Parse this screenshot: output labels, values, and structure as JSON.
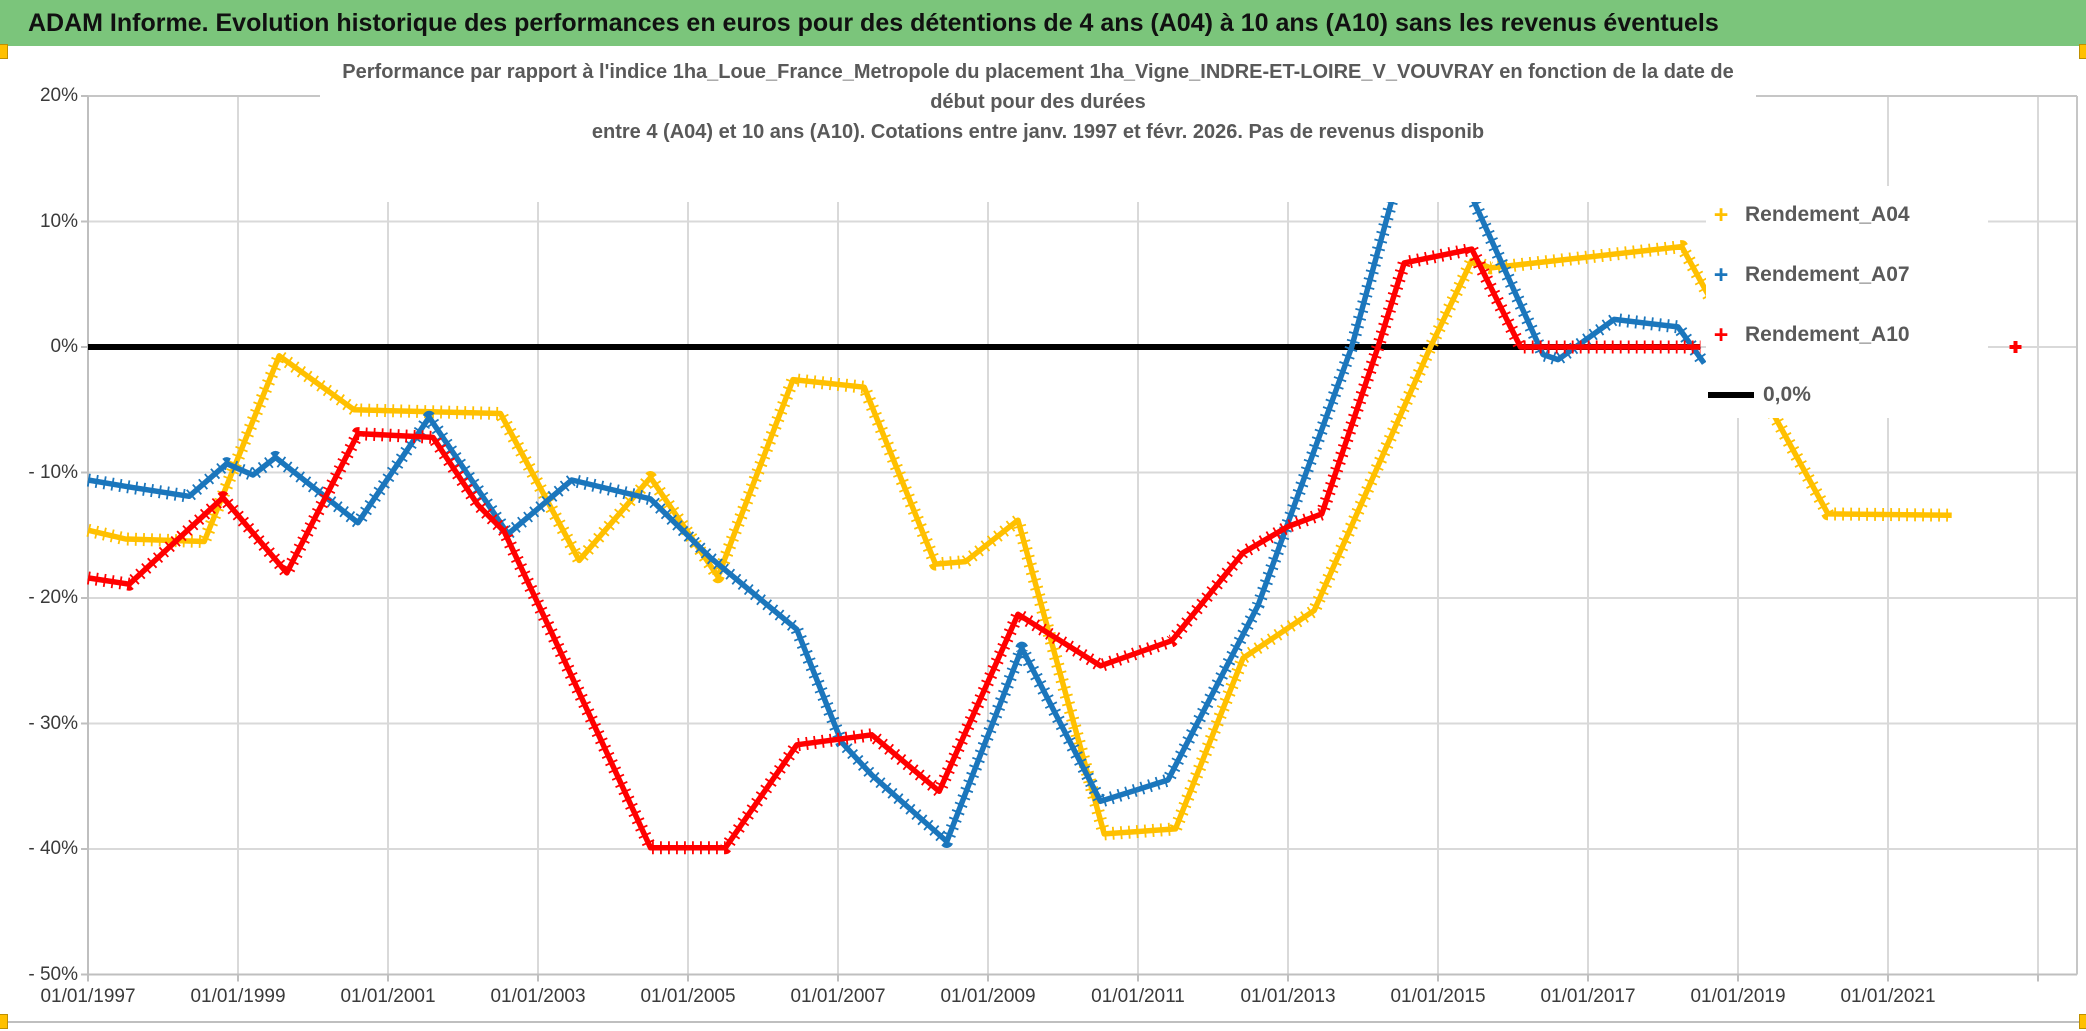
{
  "header": {
    "title": "ADAM Informe. Evolution historique des performances en euros pour des détentions de 4 ans (A04) à 10 ans (A10) sans les revenus éventuels"
  },
  "chart_data": {
    "type": "line",
    "title_lines": [
      "Performance par rapport à l'indice 1ha_Loue_France_Metropole  du placement 1ha_Vigne_INDRE-ET-LOIRE_V_VOUVRAY en fonction de la date de",
      "début pour des durées",
      "entre 4 (A04) et 10 ans (A10). Cotations entre janv. 1997 et févr. 2026. Pas de revenus disponib"
    ],
    "grid": true,
    "legend_position": "right-top",
    "ylim": [
      -50,
      20
    ],
    "xlim_years": [
      1997,
      2023.5
    ],
    "y_axis": {
      "ticks": [
        {
          "label": "20%",
          "value": 20
        },
        {
          "label": "10%",
          "value": 10
        },
        {
          "label": "0%",
          "value": 0
        },
        {
          "label": "- 10%",
          "value": -10
        },
        {
          "label": "- 20%",
          "value": -20
        },
        {
          "label": "- 30%",
          "value": -30
        },
        {
          "label": "- 40%",
          "value": -40
        },
        {
          "label": "- 50%",
          "value": -50
        }
      ]
    },
    "x_axis": {
      "ticks": [
        {
          "label": "01/01/1997",
          "year": 1997
        },
        {
          "label": "01/01/1999",
          "year": 1999
        },
        {
          "label": "01/01/2001",
          "year": 2001
        },
        {
          "label": "01/01/2003",
          "year": 2003
        },
        {
          "label": "01/01/2005",
          "year": 2005
        },
        {
          "label": "01/01/2007",
          "year": 2007
        },
        {
          "label": "01/01/2009",
          "year": 2009
        },
        {
          "label": "01/01/2011",
          "year": 2011
        },
        {
          "label": "01/01/2013",
          "year": 2013
        },
        {
          "label": "01/01/2015",
          "year": 2015
        },
        {
          "label": "01/01/2017",
          "year": 2017
        },
        {
          "label": "01/01/2019",
          "year": 2019
        },
        {
          "label": "01/01/2021",
          "year": 2021
        }
      ],
      "gridline_years": [
        1999,
        2001,
        2003,
        2005,
        2007,
        2009,
        2011,
        2013,
        2015,
        2017,
        2019,
        2021,
        2023
      ]
    },
    "zero_line": {
      "label": "0,0%",
      "value": 0,
      "color": "#000000",
      "start_year": 1997,
      "end_year": 2018.5
    },
    "series": [
      {
        "name": "Rendement_A04",
        "color": "#FFC000",
        "points": [
          [
            1997.0,
            -14.6
          ],
          [
            1997.5,
            -15.3
          ],
          [
            1998.55,
            -15.5
          ],
          [
            1999.55,
            -0.7
          ],
          [
            2000.55,
            -5.0
          ],
          [
            2002.5,
            -5.3
          ],
          [
            2003.55,
            -17.0
          ],
          [
            2004.5,
            -10.4
          ],
          [
            2005.4,
            -18.3
          ],
          [
            2006.4,
            -2.6
          ],
          [
            2007.35,
            -3.2
          ],
          [
            2008.3,
            -17.3
          ],
          [
            2008.7,
            -17.1
          ],
          [
            2009.4,
            -13.8
          ],
          [
            2010.55,
            -38.8
          ],
          [
            2011.5,
            -38.4
          ],
          [
            2012.4,
            -24.8
          ],
          [
            2013.35,
            -21.0
          ],
          [
            2014.9,
            0.0
          ],
          [
            2015.45,
            6.9
          ],
          [
            2015.7,
            6.3
          ],
          [
            2016.6,
            6.9
          ],
          [
            2018.25,
            8.0
          ],
          [
            2020.2,
            -13.3
          ],
          [
            2021.85,
            -13.4
          ]
        ]
      },
      {
        "name": "Rendement_A07",
        "color": "#1B76BC",
        "points": [
          [
            1997.0,
            -10.6
          ],
          [
            1997.6,
            -11.2
          ],
          [
            1998.35,
            -11.9
          ],
          [
            1998.85,
            -9.3
          ],
          [
            1999.2,
            -10.2
          ],
          [
            1999.5,
            -8.8
          ],
          [
            2000.6,
            -14.0
          ],
          [
            2001.55,
            -5.6
          ],
          [
            2002.6,
            -14.9
          ],
          [
            2003.45,
            -10.6
          ],
          [
            2004.5,
            -12.1
          ],
          [
            2005.3,
            -16.8
          ],
          [
            2006.45,
            -22.5
          ],
          [
            2007.05,
            -31.5
          ],
          [
            2007.45,
            -34.1
          ],
          [
            2008.45,
            -39.4
          ],
          [
            2009.45,
            -24.0
          ],
          [
            2010.5,
            -36.2
          ],
          [
            2011.4,
            -34.5
          ],
          [
            2012.6,
            -20.6
          ],
          [
            2013.85,
            0.0
          ],
          [
            2014.55,
            15.3
          ],
          [
            2015.2,
            15.3
          ],
          [
            2016.4,
            -0.6
          ],
          [
            2016.6,
            -1.0
          ],
          [
            2017.35,
            2.2
          ],
          [
            2018.2,
            1.6
          ],
          [
            2018.55,
            -1.3
          ]
        ]
      },
      {
        "name": "Rendement_A10",
        "color": "#FF0000",
        "points": [
          [
            1997.0,
            -18.4
          ],
          [
            1997.55,
            -18.9
          ],
          [
            1998.8,
            -12.0
          ],
          [
            1999.65,
            -18.0
          ],
          [
            2000.6,
            -6.9
          ],
          [
            2001.6,
            -7.2
          ],
          [
            2002.2,
            -12.6
          ],
          [
            2002.55,
            -14.7
          ],
          [
            2003.2,
            -23.0
          ],
          [
            2004.5,
            -39.9
          ],
          [
            2005.5,
            -39.9
          ],
          [
            2006.45,
            -31.7
          ],
          [
            2007.45,
            -30.9
          ],
          [
            2008.35,
            -35.4
          ],
          [
            2009.4,
            -21.3
          ],
          [
            2010.5,
            -25.4
          ],
          [
            2011.45,
            -23.4
          ],
          [
            2012.4,
            -16.4
          ],
          [
            2013.0,
            -14.3
          ],
          [
            2013.45,
            -13.3
          ],
          [
            2014.2,
            0.0
          ],
          [
            2014.55,
            6.7
          ],
          [
            2015.45,
            7.8
          ],
          [
            2016.1,
            0.0
          ],
          [
            2018.5,
            0.0
          ]
        ]
      }
    ],
    "isolated_points": [
      {
        "series": "Rendement_A10",
        "color": "#FF0000",
        "year": 2022.7,
        "value": 0.0
      }
    ],
    "legend": {
      "items": [
        {
          "label": "Rendement_A04",
          "color": "#FFC000",
          "marker": "plus"
        },
        {
          "label": "Rendement_A07",
          "color": "#1B76BC",
          "marker": "plus"
        },
        {
          "label": "Rendement_A10",
          "color": "#FF0000",
          "marker": "plus"
        },
        {
          "label": "0,0%",
          "color": "#000000",
          "marker": "line"
        }
      ]
    }
  }
}
